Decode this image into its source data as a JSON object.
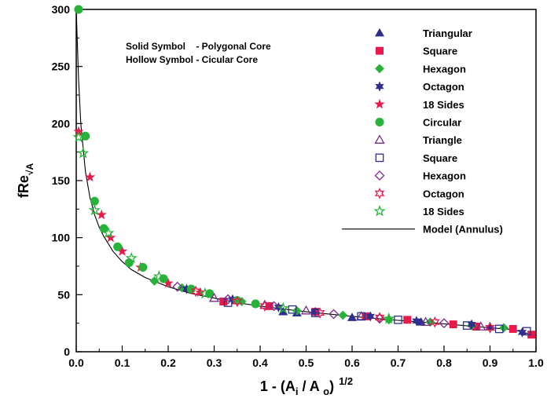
{
  "chart_data": {
    "type": "scatter",
    "xlim": [
      0,
      1
    ],
    "ylim": [
      0,
      300
    ],
    "xticks": [
      "0.0",
      "0.1",
      "0.2",
      "0.3",
      "0.4",
      "0.5",
      "0.6",
      "0.7",
      "0.8",
      "0.9",
      "1.0"
    ],
    "yticks": [
      "0",
      "50",
      "100",
      "150",
      "200",
      "250",
      "300"
    ],
    "xlabel": {
      "main": "1 - (A",
      "sub1": "i",
      "mid": " / A ",
      "sub2": "o",
      "end": ")",
      "sup": "1/2"
    },
    "ylabel": {
      "main": "fRe",
      "sub": "√A"
    },
    "annotations": [
      "Solid Symbol    - Polygonal Core",
      "Hollow Symbol - Cicular Core"
    ],
    "legend_position": "top-right",
    "grid": false,
    "model": {
      "name": "Model (Annulus)",
      "x": [
        0.0,
        0.005,
        0.01,
        0.02,
        0.03,
        0.04,
        0.05,
        0.06,
        0.08,
        0.1,
        0.12,
        0.15,
        0.2,
        0.25,
        0.3,
        0.35,
        0.4,
        0.45,
        0.5,
        0.6,
        0.7,
        0.8,
        0.9,
        0.95,
        1.0
      ],
      "y": [
        300,
        240,
        200,
        158,
        135,
        120,
        109,
        101,
        88,
        79,
        72,
        65,
        57,
        51,
        47,
        43,
        40,
        37.5,
        35,
        31,
        27.5,
        24.5,
        21,
        19.5,
        14
      ]
    },
    "series": [
      {
        "name": "Triangular",
        "marker": "triangle",
        "filled": true,
        "color": "#2e2e8c",
        "x": [
          0.45,
          0.48,
          0.6,
          0.75,
          0.9
        ],
        "y": [
          35,
          34,
          30,
          26,
          22
        ]
      },
      {
        "name": "Square",
        "marker": "square",
        "filled": true,
        "color": "#e8194b",
        "x": [
          0.32,
          0.42,
          0.52,
          0.63,
          0.72,
          0.82,
          0.87,
          0.95,
          0.99
        ],
        "y": [
          44,
          40,
          35,
          31,
          28,
          24,
          22,
          20,
          15
        ]
      },
      {
        "name": "Hexagon",
        "marker": "diamond",
        "filled": true,
        "color": "#27b33a",
        "x": [
          0.17,
          0.23,
          0.36,
          0.48,
          0.58,
          0.68,
          0.77,
          0.86,
          0.93
        ],
        "y": [
          62,
          56,
          44,
          36,
          32,
          28,
          26,
          23,
          21
        ]
      },
      {
        "name": "Octagon",
        "marker": "star6",
        "filled": true,
        "color": "#2e2e8c",
        "x": [
          0.24,
          0.34,
          0.44,
          0.52,
          0.64,
          0.74,
          0.86,
          0.97
        ],
        "y": [
          55,
          46,
          39,
          35,
          31,
          27,
          24,
          17
        ]
      },
      {
        "name": "18 Sides",
        "marker": "star5",
        "filled": true,
        "color": "#e8194b",
        "x": [
          0.005,
          0.03,
          0.055,
          0.075,
          0.1,
          0.14,
          0.2,
          0.27
        ],
        "y": [
          193,
          153,
          120,
          100,
          88,
          74,
          60,
          52
        ]
      },
      {
        "name": "Circular",
        "marker": "circle",
        "filled": true,
        "color": "#27b33a",
        "x": [
          0.005,
          0.02,
          0.04,
          0.06,
          0.09,
          0.115,
          0.145,
          0.19,
          0.25,
          0.29,
          0.35,
          0.39
        ],
        "y": [
          300,
          189,
          132,
          108,
          92,
          78,
          74,
          64,
          55,
          51,
          45,
          42
        ]
      },
      {
        "name": "Triangle",
        "marker": "triangle",
        "filled": false,
        "color": "#7a2a8f",
        "x": [
          0.3,
          0.41,
          0.5,
          0.62,
          0.76,
          0.88
        ],
        "y": [
          47,
          41,
          36,
          31,
          26,
          22
        ]
      },
      {
        "name": "Square",
        "marker": "square",
        "filled": false,
        "color": "#2e2e8c",
        "x": [
          0.33,
          0.47,
          0.52,
          0.62,
          0.7,
          0.85,
          0.92,
          0.98
        ],
        "y": [
          43,
          37,
          34,
          31,
          28,
          23,
          20,
          18
        ]
      },
      {
        "name": "Hexagon",
        "marker": "diamond",
        "filled": false,
        "color": "#7a2a8f",
        "x": [
          0.22,
          0.33,
          0.43,
          0.56,
          0.66,
          0.8
        ],
        "y": [
          57,
          46,
          40,
          33,
          29,
          25
        ]
      },
      {
        "name": "Octagon",
        "marker": "star6",
        "filled": false,
        "color": "#e8194b",
        "x": [
          0.26,
          0.35,
          0.41,
          0.53,
          0.66,
          0.78,
          0.9
        ],
        "y": [
          53,
          44,
          40,
          34,
          30,
          26,
          21
        ]
      },
      {
        "name": "18 Sides",
        "marker": "star5",
        "filled": false,
        "color": "#27b33a",
        "x": [
          0.005,
          0.015,
          0.04,
          0.07,
          0.12,
          0.18,
          0.28,
          0.45,
          0.68
        ],
        "y": [
          188,
          174,
          124,
          104,
          82,
          66,
          51,
          38,
          29
        ]
      }
    ]
  }
}
